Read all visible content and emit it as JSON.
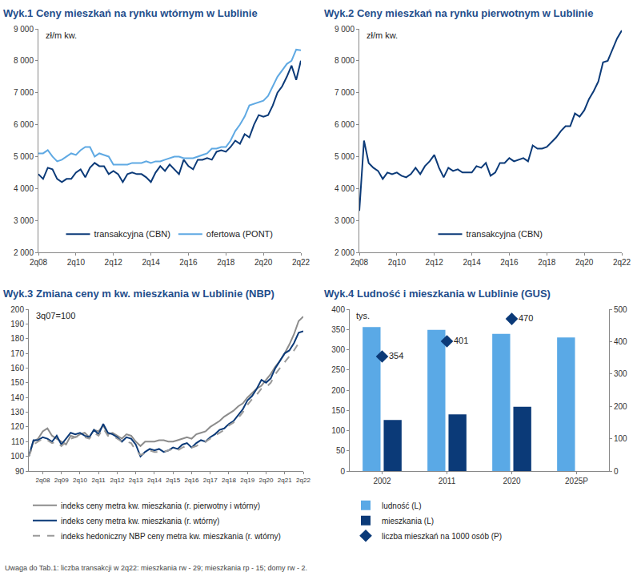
{
  "note": "Uwaga do Tab.1: liczba transakcji w 2q22: mieszkania rw - 29; mieszkania rp - 15; domy rw - 2.",
  "chart_data": [
    {
      "type": "line",
      "title": "Wyk.1 Ceny mieszkań na rynku wtórnym w Lublinie",
      "ylabel": "zł/m kw.",
      "categories": [
        "2q08",
        null,
        null,
        null,
        null,
        null,
        null,
        null,
        "2q10",
        null,
        null,
        null,
        null,
        null,
        null,
        null,
        "2q12",
        null,
        null,
        null,
        null,
        null,
        null,
        null,
        "2q14",
        null,
        null,
        null,
        null,
        null,
        null,
        null,
        "2q16",
        null,
        null,
        null,
        null,
        null,
        null,
        null,
        "2q18",
        null,
        null,
        null,
        null,
        null,
        null,
        null,
        "2q20",
        null,
        null,
        null,
        null,
        null,
        null,
        null,
        "2q22"
      ],
      "series": [
        {
          "name": "transakcyjna (CBN)",
          "color": "#0b3a78",
          "line_style": "solid",
          "values": [
            4450,
            4300,
            4650,
            4600,
            4300,
            4200,
            4300,
            4300,
            4500,
            4600,
            4350,
            4650,
            4800,
            4700,
            4700,
            4450,
            4550,
            4450,
            4200,
            4450,
            4500,
            4450,
            4450,
            4350,
            4200,
            4500,
            4700,
            4550,
            4750,
            4600,
            4450,
            4900,
            4700,
            4600,
            4900,
            4900,
            4950,
            4900,
            5150,
            5200,
            5150,
            5300,
            5500,
            5400,
            5700,
            5600,
            6000,
            6300,
            6250,
            6300,
            6600,
            7000,
            7200,
            7500,
            7850,
            7400,
            8000
          ]
        },
        {
          "name": "ofertowa (PONT)",
          "color": "#5fa9e3",
          "line_style": "solid",
          "values": [
            5100,
            5100,
            5200,
            5000,
            4850,
            4900,
            5000,
            5100,
            5050,
            5200,
            5300,
            5300,
            5000,
            5100,
            5050,
            5000,
            4750,
            4750,
            4750,
            4750,
            4800,
            4800,
            4800,
            4850,
            4800,
            4850,
            4850,
            4900,
            4950,
            5000,
            5000,
            4950,
            4950,
            4950,
            5000,
            5050,
            5100,
            5250,
            5250,
            5300,
            5300,
            5500,
            5800,
            6000,
            6250,
            6600,
            6650,
            6700,
            6750,
            6900,
            7200,
            7500,
            7700,
            7900,
            8000,
            8350,
            8330
          ]
        }
      ],
      "ylim": [
        2000,
        9000
      ],
      "yticks": [
        {
          "value": 2000,
          "label": "2 000"
        },
        {
          "value": 3000,
          "label": "3 000"
        },
        {
          "value": 4000,
          "label": "4 000"
        },
        {
          "value": 5000,
          "label": "5 000"
        },
        {
          "value": 6000,
          "label": "6 000"
        },
        {
          "value": 7000,
          "label": "7 000"
        },
        {
          "value": 8000,
          "label": "8 000"
        },
        {
          "value": 9000,
          "label": "9 000"
        }
      ],
      "grid": false,
      "legend": "bottom"
    },
    {
      "type": "line",
      "title": "Wyk.2 Ceny mieszkań na rynku pierwotnym w Lublinie",
      "ylabel": "zł/m kw.",
      "categories": [
        "2q08",
        null,
        null,
        null,
        null,
        null,
        null,
        null,
        "2q10",
        null,
        null,
        null,
        null,
        null,
        null,
        null,
        "2q12",
        null,
        null,
        null,
        null,
        null,
        null,
        null,
        "2q14",
        null,
        null,
        null,
        null,
        null,
        null,
        null,
        "2q16",
        null,
        null,
        null,
        null,
        null,
        null,
        null,
        "2q18",
        null,
        null,
        null,
        null,
        null,
        null,
        null,
        "2q20",
        null,
        null,
        null,
        null,
        null,
        null,
        null,
        "2q22"
      ],
      "series": [
        {
          "name": "transakcyjna (CBN)",
          "color": "#0b3a78",
          "line_style": "solid",
          "values": [
            3300,
            5500,
            4800,
            4650,
            4550,
            4300,
            4500,
            4450,
            4500,
            4400,
            4350,
            4450,
            4650,
            4450,
            4700,
            4850,
            5050,
            4650,
            4350,
            4650,
            4550,
            4600,
            4500,
            4500,
            4500,
            4700,
            4650,
            4800,
            4400,
            4500,
            4800,
            4800,
            4950,
            4850,
            4900,
            4950,
            4850,
            5350,
            5250,
            5250,
            5300,
            5450,
            5600,
            5800,
            5950,
            5950,
            6350,
            6250,
            6450,
            6800,
            7050,
            7350,
            7950,
            8000,
            8350,
            8700,
            8950
          ]
        }
      ],
      "ylim": [
        2000,
        9000
      ],
      "yticks": [
        {
          "value": 2000,
          "label": "2 000"
        },
        {
          "value": 3000,
          "label": "3 000"
        },
        {
          "value": 4000,
          "label": "4 000"
        },
        {
          "value": 5000,
          "label": "5 000"
        },
        {
          "value": 6000,
          "label": "6 000"
        },
        {
          "value": 7000,
          "label": "7 000"
        },
        {
          "value": 8000,
          "label": "8 000"
        },
        {
          "value": 9000,
          "label": "9 000"
        }
      ],
      "grid": false,
      "legend": "bottom"
    },
    {
      "type": "line",
      "title": "Wyk.3 Zmiana ceny m kw. mieszkania w Lublinie (NBP)",
      "annotation": "3q07=100",
      "categories": [
        null,
        null,
        null,
        "2q08",
        null,
        null,
        null,
        "2q09",
        null,
        null,
        null,
        "2q10",
        null,
        null,
        null,
        "2q11",
        null,
        null,
        null,
        "2q12",
        null,
        null,
        null,
        "2q13",
        null,
        null,
        null,
        "2q14",
        null,
        null,
        null,
        "2q15",
        null,
        null,
        null,
        "2q16",
        null,
        null,
        null,
        "2q17",
        null,
        null,
        null,
        "2q18",
        null,
        null,
        null,
        "2q19",
        null,
        null,
        null,
        "2q20",
        null,
        null,
        null,
        "2q21",
        null,
        null,
        null,
        "2q22"
      ],
      "series": [
        {
          "name": "indeks ceny metra kw. mieszkania (r. pierwotny i wtórny)",
          "color": "#8c8c8c",
          "line_style": "solid",
          "values": [
            100,
            110,
            112,
            117,
            119,
            114,
            112,
            110,
            108,
            114,
            113,
            115,
            116,
            113,
            118,
            117,
            121,
            115,
            116,
            114,
            112,
            115,
            114,
            110,
            107,
            110,
            110,
            110,
            111,
            111,
            110,
            110,
            111,
            112,
            113,
            112,
            115,
            116,
            117,
            120,
            122,
            124,
            127,
            129,
            131,
            134,
            136,
            140,
            143,
            146,
            148,
            152,
            156,
            161,
            165,
            170,
            176,
            183,
            192,
            195
          ]
        },
        {
          "name": "indeks ceny metra kw. mieszkania (r. wtórny)",
          "color": "#0b3a78",
          "line_style": "solid",
          "values": [
            100,
            111,
            111,
            113,
            112,
            110,
            114,
            108,
            112,
            116,
            115,
            116,
            114,
            113,
            118,
            115,
            122,
            116,
            115,
            113,
            110,
            113,
            112,
            108,
            100,
            103,
            105,
            104,
            105,
            103,
            104,
            106,
            105,
            108,
            109,
            106,
            109,
            111,
            110,
            113,
            115,
            118,
            119,
            122,
            124,
            128,
            132,
            138,
            141,
            146,
            152,
            150,
            153,
            160,
            165,
            170,
            172,
            177,
            184,
            185
          ]
        },
        {
          "name": "indeks hedoniczny NBP ceny metra kw. mieszkania (r. wtórny)",
          "color": "#9a9a9a",
          "line_style": "dash",
          "values": [
            100,
            108,
            110,
            112,
            111,
            109,
            110,
            107,
            110,
            112,
            113,
            114,
            113,
            112,
            116,
            114,
            119,
            114,
            114,
            112,
            110,
            110,
            109,
            104,
            101,
            102,
            104,
            103,
            103,
            103,
            104,
            105,
            104,
            106,
            107,
            106,
            107,
            109,
            110,
            112,
            114,
            116,
            118,
            121,
            123,
            126,
            130,
            135,
            139,
            142,
            146,
            147,
            150,
            156,
            160,
            164,
            168,
            172,
            177,
            178
          ]
        }
      ],
      "ylim": [
        90,
        200
      ],
      "yticks": [
        90,
        100,
        110,
        120,
        130,
        140,
        150,
        160,
        170,
        180,
        190,
        200
      ],
      "grid": false,
      "legend": "below"
    },
    {
      "type": "bar",
      "title": "Wyk.4 Ludność i mieszkania w Lublinie (GUS)",
      "ylabel": "tys.",
      "categories": [
        "2002",
        "2011",
        "2020",
        "2025P"
      ],
      "series": [
        {
          "name": "ludność (L)",
          "color": "#5aa9e6",
          "type": "bar",
          "values": [
            356,
            349,
            339,
            330
          ]
        },
        {
          "name": "mieszkania (L)",
          "color": "#0b3a78",
          "type": "bar",
          "values": [
            126,
            140,
            159,
            null
          ]
        },
        {
          "name": "liczba mieszkań na 1000 osób (P)",
          "color": "#0b3a78",
          "type": "scatter",
          "marker": "diamond",
          "axis": "y2",
          "data_labels": true,
          "values": [
            354,
            401,
            470,
            null
          ]
        }
      ],
      "ylim": [
        0,
        400
      ],
      "yticks": [
        0,
        50,
        100,
        150,
        200,
        250,
        300,
        350,
        400
      ],
      "y2lim": [
        0,
        500
      ],
      "y2ticks": [
        0,
        100,
        200,
        300,
        400,
        500
      ],
      "grid": false,
      "legend": "below"
    }
  ]
}
